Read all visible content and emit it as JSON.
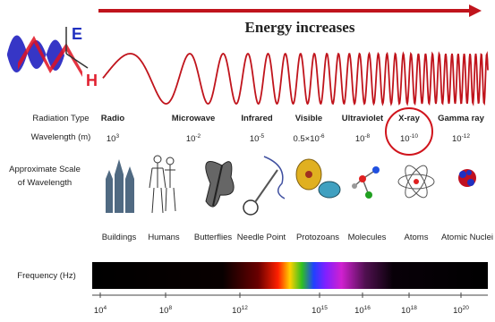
{
  "header": {
    "title": "Energy increases"
  },
  "wave_labels": {
    "e": "E",
    "h": "H"
  },
  "row_labels": {
    "radiation_type": "Radiation Type",
    "wavelength": "Wavelength (m)",
    "scale": [
      "Approximate Scale",
      "of Wavelength"
    ],
    "frequency": "Frequency (Hz)"
  },
  "radiation": [
    {
      "name": "Radio",
      "wavelength": {
        "base": "10",
        "exp": "3"
      }
    },
    {
      "name": "Microwave",
      "wavelength": {
        "base": "10",
        "exp": "-2"
      }
    },
    {
      "name": "Infrared",
      "wavelength": {
        "base": "10",
        "exp": "-5"
      }
    },
    {
      "name": "Visible",
      "wavelength": {
        "base": "0.5×10",
        "exp": "-6"
      }
    },
    {
      "name": "Ultraviolet",
      "wavelength": {
        "base": "10",
        "exp": "-8"
      }
    },
    {
      "name": "X-ray",
      "wavelength": {
        "base": "10",
        "exp": "-10"
      }
    },
    {
      "name": "Gamma ray",
      "wavelength": {
        "base": "10",
        "exp": "-12"
      }
    }
  ],
  "scale_objects": [
    "Buildings",
    "Humans",
    "Butterflies",
    "Needle Point",
    "Protozoans",
    "Molecules",
    "Atoms",
    "Atomic Nuclei"
  ],
  "frequency_ticks": [
    {
      "base": "10",
      "exp": "4"
    },
    {
      "base": "10",
      "exp": "8"
    },
    {
      "base": "10",
      "exp": "12"
    },
    {
      "base": "10",
      "exp": "15"
    },
    {
      "base": "10",
      "exp": "16"
    },
    {
      "base": "10",
      "exp": "18"
    },
    {
      "base": "10",
      "exp": "20"
    }
  ]
}
